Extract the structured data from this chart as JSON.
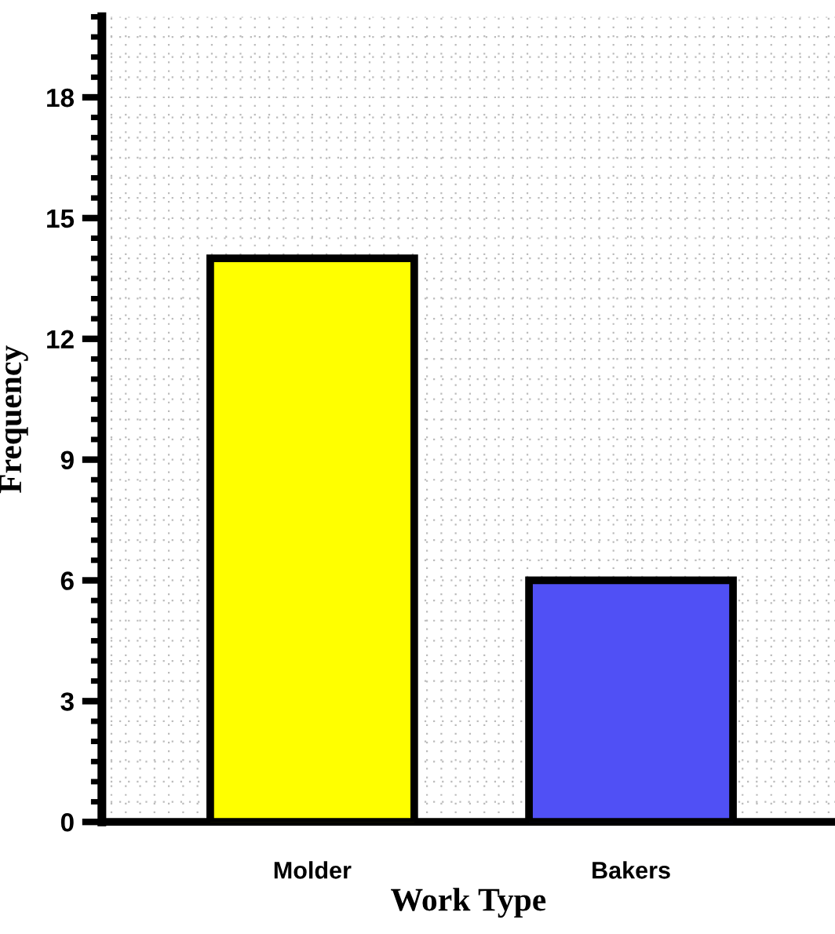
{
  "chart_data": {
    "type": "bar",
    "xlabel": "Work Type",
    "ylabel": "Frequency",
    "categories": [
      "Molder",
      "Bakers"
    ],
    "series": [
      {
        "colors": [
          "#ffff00",
          "#5050f5"
        ],
        "values": [
          14,
          6
        ]
      }
    ],
    "ylim": [
      0,
      20
    ],
    "yticks": [
      0,
      3,
      6,
      9,
      12,
      15,
      18
    ],
    "grid": true,
    "legend": false
  }
}
